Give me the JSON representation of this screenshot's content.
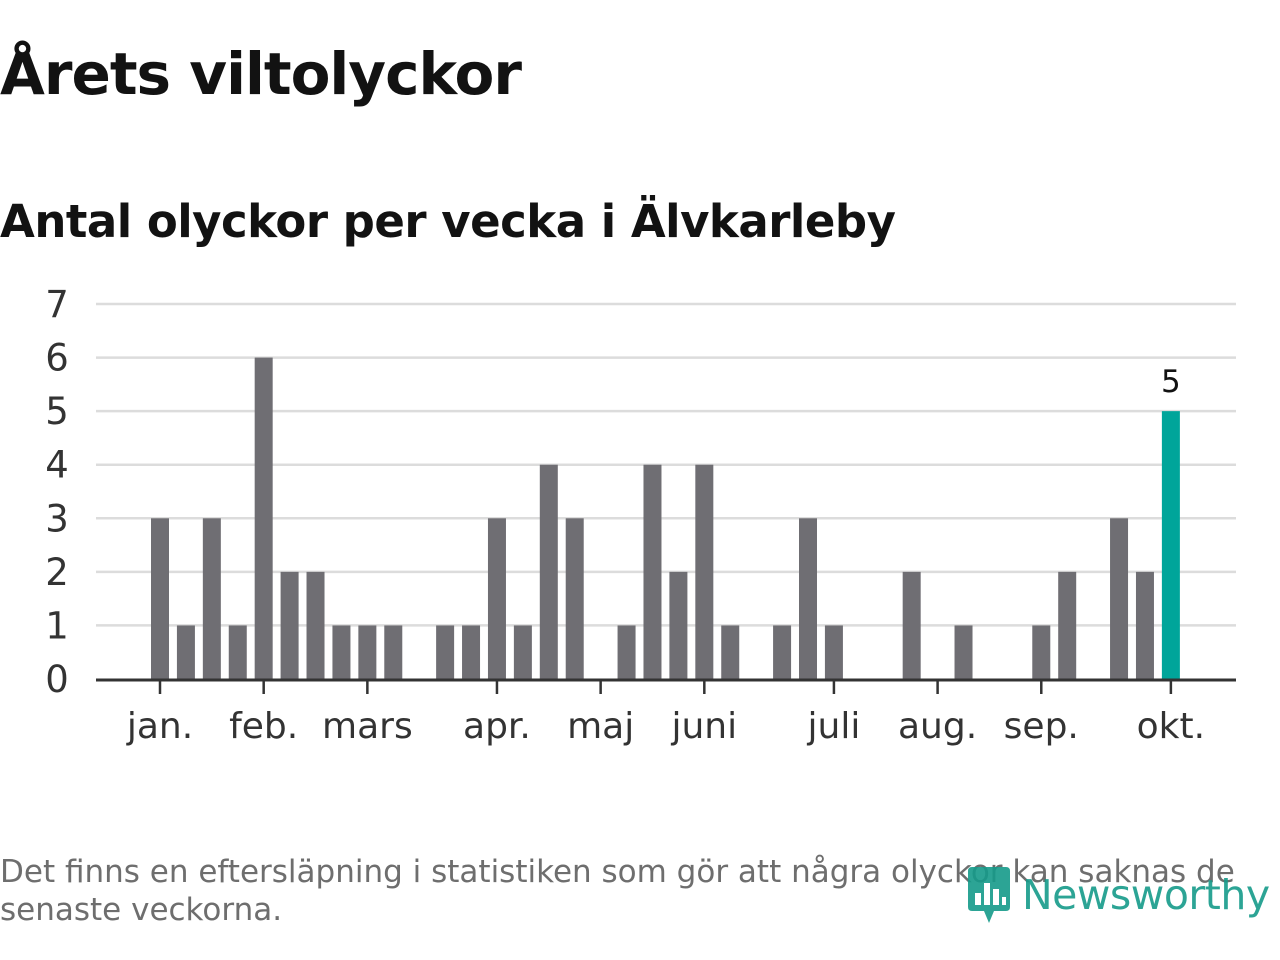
{
  "title": "Årets viltolyckor",
  "subtitle": "Antal olyckor per vecka i Älvkarleby",
  "footnote": "Det finns en eftersläpning i statistiken som gör att några olyckor kan saknas de senaste veckorna.",
  "brand": "Newsworthy",
  "colors": {
    "bar": "#6f6e73",
    "highlight": "#00a59a",
    "grid": "#dcdcdc",
    "axis": "#333333",
    "brand": "#169b8a"
  },
  "chart_data": {
    "type": "bar",
    "ylim": [
      0,
      7
    ],
    "yticks": [
      0,
      1,
      2,
      3,
      4,
      5,
      6,
      7
    ],
    "grid": true,
    "months": [
      {
        "label": "jan.",
        "week": 1
      },
      {
        "label": "feb.",
        "week": 5
      },
      {
        "label": "mars",
        "week": 9
      },
      {
        "label": "apr.",
        "week": 14
      },
      {
        "label": "maj",
        "week": 18
      },
      {
        "label": "juni",
        "week": 22
      },
      {
        "label": "juli",
        "week": 27
      },
      {
        "label": "aug.",
        "week": 31
      },
      {
        "label": "sep.",
        "week": 35
      },
      {
        "label": "okt.",
        "week": 40
      }
    ],
    "x": [
      1,
      2,
      3,
      4,
      5,
      6,
      7,
      8,
      9,
      10,
      11,
      12,
      13,
      14,
      15,
      16,
      17,
      18,
      19,
      20,
      21,
      22,
      23,
      24,
      25,
      26,
      27,
      28,
      29,
      30,
      31,
      32,
      33,
      34,
      35,
      36,
      37,
      38,
      39,
      40
    ],
    "values": [
      3,
      1,
      3,
      1,
      6,
      2,
      2,
      1,
      1,
      1,
      0,
      1,
      1,
      3,
      1,
      4,
      3,
      0,
      1,
      4,
      2,
      4,
      1,
      0,
      1,
      3,
      1,
      0,
      0,
      2,
      0,
      1,
      0,
      0,
      1,
      2,
      0,
      3,
      2,
      5
    ],
    "highlight_index": 39,
    "highlight_label": "5"
  }
}
